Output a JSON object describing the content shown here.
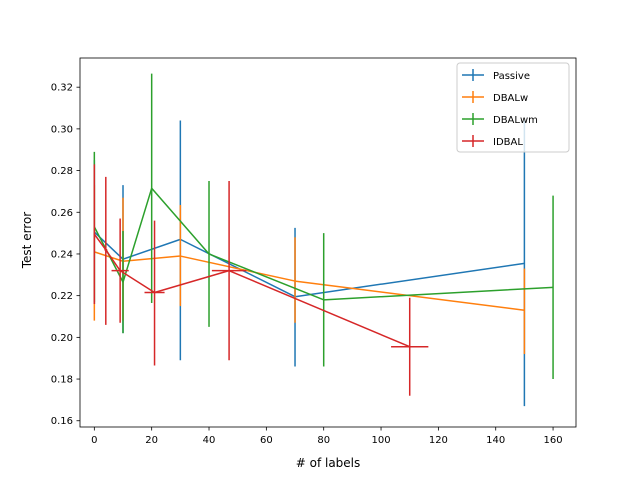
{
  "chart_data": {
    "type": "line",
    "title": "",
    "xlabel": "# of labels",
    "ylabel": "Test error",
    "xlim": [
      -5,
      168
    ],
    "ylim": [
      0.157,
      0.334
    ],
    "xticks": [
      0,
      20,
      40,
      60,
      80,
      100,
      120,
      140,
      160
    ],
    "xtick_labels": [
      "0",
      "20",
      "40",
      "60",
      "80",
      "100",
      "120",
      "140",
      "160"
    ],
    "yticks": [
      0.16,
      0.18,
      0.2,
      0.22,
      0.24,
      0.26,
      0.28,
      0.3,
      0.32
    ],
    "ytick_labels": [
      "0.16",
      "0.18",
      "0.20",
      "0.22",
      "0.24",
      "0.26",
      "0.28",
      "0.30",
      "0.32"
    ],
    "legend_position": "top-right",
    "series": [
      {
        "name": "Passive",
        "color": "#1f77b4",
        "points": [
          {
            "x": 0,
            "y": 0.2505,
            "yerr_low": 0.216,
            "yerr_high": 0.285
          },
          {
            "x": 10,
            "y": 0.2375,
            "yerr_low": 0.202,
            "yerr_high": 0.273
          },
          {
            "x": 30,
            "y": 0.247,
            "yerr_low": 0.189,
            "yerr_high": 0.304
          },
          {
            "x": 70,
            "y": 0.2195,
            "yerr_low": 0.186,
            "yerr_high": 0.2525
          },
          {
            "x": 150,
            "y": 0.2355,
            "yerr_low": 0.167,
            "yerr_high": 0.304
          }
        ]
      },
      {
        "name": "DBALw",
        "color": "#ff7f0e",
        "points": [
          {
            "x": 0,
            "y": 0.241,
            "yerr_low": 0.208,
            "yerr_high": 0.273
          },
          {
            "x": 10,
            "y": 0.2365,
            "yerr_low": 0.208,
            "yerr_high": 0.267
          },
          {
            "x": 30,
            "y": 0.239,
            "yerr_low": 0.215,
            "yerr_high": 0.2635
          },
          {
            "x": 70,
            "y": 0.227,
            "yerr_low": 0.207,
            "yerr_high": 0.248
          },
          {
            "x": 150,
            "y": 0.213,
            "yerr_low": 0.192,
            "yerr_high": 0.233
          }
        ]
      },
      {
        "name": "DBALwm",
        "color": "#2ca02c",
        "points": [
          {
            "x": 0,
            "y": 0.253,
            "yerr_low": 0.217,
            "yerr_high": 0.289
          },
          {
            "x": 10,
            "y": 0.2265,
            "yerr_low": 0.202,
            "yerr_high": 0.251
          },
          {
            "x": 20,
            "y": 0.2715,
            "yerr_low": 0.2165,
            "yerr_high": 0.3265
          },
          {
            "x": 40,
            "y": 0.24,
            "yerr_low": 0.205,
            "yerr_high": 0.275
          },
          {
            "x": 80,
            "y": 0.218,
            "yerr_low": 0.186,
            "yerr_high": 0.25
          },
          {
            "x": 160,
            "y": 0.224,
            "yerr_low": 0.18,
            "yerr_high": 0.268
          }
        ]
      },
      {
        "name": "IDBAL",
        "color": "#d62728",
        "points": [
          {
            "x": 0,
            "y": 0.2495,
            "xerr": 0.3,
            "yerr_low": 0.216,
            "yerr_high": 0.283
          },
          {
            "x": 4,
            "y": 0.242,
            "xerr": 0.5,
            "yerr_low": 0.206,
            "yerr_high": 0.277
          },
          {
            "x": 9,
            "y": 0.232,
            "xerr": 3.0,
            "yerr_low": 0.207,
            "yerr_high": 0.257
          },
          {
            "x": 21,
            "y": 0.2215,
            "xerr": 3.5,
            "yerr_low": 0.1865,
            "yerr_high": 0.256
          },
          {
            "x": 47,
            "y": 0.232,
            "xerr": 6.0,
            "yerr_low": 0.189,
            "yerr_high": 0.275
          },
          {
            "x": 110,
            "y": 0.1955,
            "xerr": 6.5,
            "yerr_low": 0.172,
            "yerr_high": 0.219
          }
        ]
      }
    ]
  }
}
